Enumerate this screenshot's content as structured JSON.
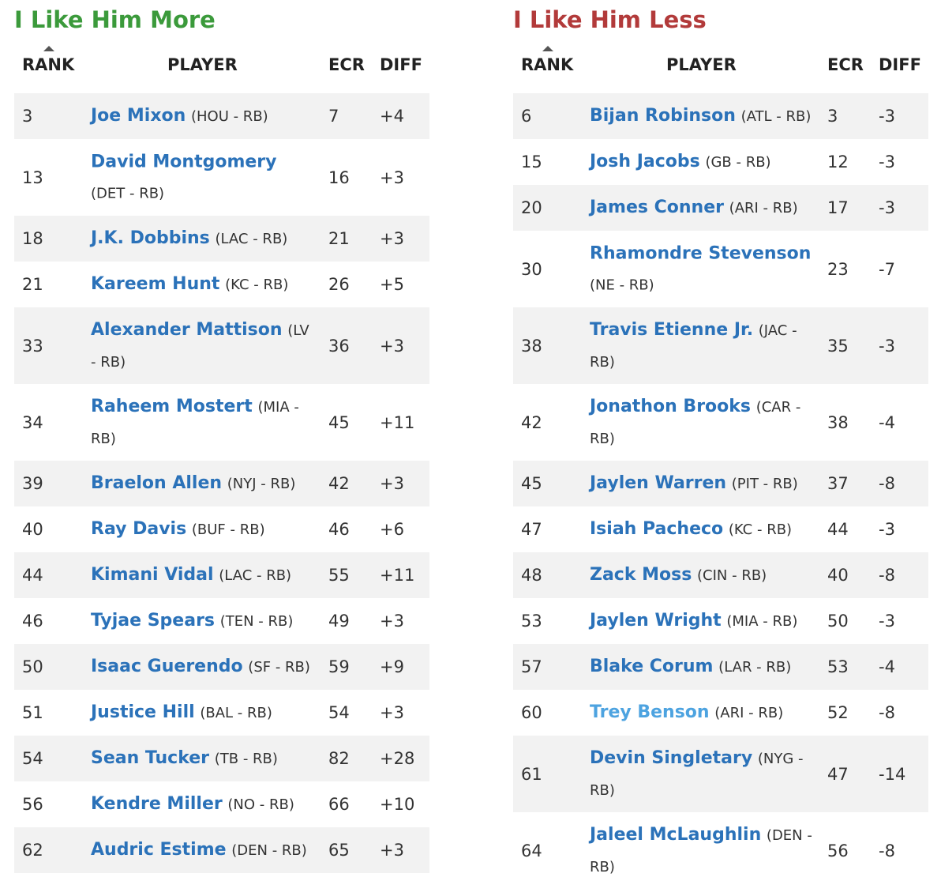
{
  "headers": {
    "rank": "RANK",
    "player": "PLAYER",
    "ecr": "ECR",
    "diff": "DIFF"
  },
  "left": {
    "title": "I Like Him More",
    "rows": [
      {
        "rank": "3",
        "name": "Joe Mixon",
        "team": "(HOU - RB)",
        "ecr": "7",
        "diff": "+4"
      },
      {
        "rank": "13",
        "name": "David Montgomery",
        "team": "(DET - RB)",
        "ecr": "16",
        "diff": "+3"
      },
      {
        "rank": "18",
        "name": "J.K. Dobbins",
        "team": "(LAC - RB)",
        "ecr": "21",
        "diff": "+3"
      },
      {
        "rank": "21",
        "name": "Kareem Hunt",
        "team": "(KC - RB)",
        "ecr": "26",
        "diff": "+5"
      },
      {
        "rank": "33",
        "name": "Alexander Mattison",
        "team": "(LV - RB)",
        "ecr": "36",
        "diff": "+3"
      },
      {
        "rank": "34",
        "name": "Raheem Mostert",
        "team": "(MIA - RB)",
        "ecr": "45",
        "diff": "+11"
      },
      {
        "rank": "39",
        "name": "Braelon Allen",
        "team": "(NYJ - RB)",
        "ecr": "42",
        "diff": "+3"
      },
      {
        "rank": "40",
        "name": "Ray Davis",
        "team": "(BUF - RB)",
        "ecr": "46",
        "diff": "+6"
      },
      {
        "rank": "44",
        "name": "Kimani Vidal",
        "team": "(LAC - RB)",
        "ecr": "55",
        "diff": "+11"
      },
      {
        "rank": "46",
        "name": "Tyjae Spears",
        "team": "(TEN - RB)",
        "ecr": "49",
        "diff": "+3"
      },
      {
        "rank": "50",
        "name": "Isaac Guerendo",
        "team": "(SF - RB)",
        "ecr": "59",
        "diff": "+9"
      },
      {
        "rank": "51",
        "name": "Justice Hill",
        "team": "(BAL - RB)",
        "ecr": "54",
        "diff": "+3"
      },
      {
        "rank": "54",
        "name": "Sean Tucker",
        "team": "(TB - RB)",
        "ecr": "82",
        "diff": "+28"
      },
      {
        "rank": "56",
        "name": "Kendre Miller",
        "team": "(NO - RB)",
        "ecr": "66",
        "diff": "+10"
      },
      {
        "rank": "62",
        "name": "Audric Estime",
        "team": "(DEN - RB)",
        "ecr": "65",
        "diff": "+3"
      }
    ]
  },
  "right": {
    "title": "I Like Him Less",
    "rows": [
      {
        "rank": "6",
        "name": "Bijan Robinson",
        "team": "(ATL - RB)",
        "ecr": "3",
        "diff": "-3"
      },
      {
        "rank": "15",
        "name": "Josh Jacobs",
        "team": "(GB - RB)",
        "ecr": "12",
        "diff": "-3"
      },
      {
        "rank": "20",
        "name": "James Conner",
        "team": "(ARI - RB)",
        "ecr": "17",
        "diff": "-3"
      },
      {
        "rank": "30",
        "name": "Rhamondre Stevenson",
        "team": "(NE - RB)",
        "ecr": "23",
        "diff": "-7"
      },
      {
        "rank": "38",
        "name": "Travis Etienne Jr.",
        "team": "(JAC - RB)",
        "ecr": "35",
        "diff": "-3"
      },
      {
        "rank": "42",
        "name": "Jonathon Brooks",
        "team": "(CAR - RB)",
        "ecr": "38",
        "diff": "-4"
      },
      {
        "rank": "45",
        "name": "Jaylen Warren",
        "team": "(PIT - RB)",
        "ecr": "37",
        "diff": "-8"
      },
      {
        "rank": "47",
        "name": "Isiah Pacheco",
        "team": "(KC - RB)",
        "ecr": "44",
        "diff": "-3"
      },
      {
        "rank": "48",
        "name": "Zack Moss",
        "team": "(CIN - RB)",
        "ecr": "40",
        "diff": "-8"
      },
      {
        "rank": "53",
        "name": "Jaylen Wright",
        "team": "(MIA - RB)",
        "ecr": "50",
        "diff": "-3"
      },
      {
        "rank": "57",
        "name": "Blake Corum",
        "team": "(LAR - RB)",
        "ecr": "53",
        "diff": "-4"
      },
      {
        "rank": "60",
        "name": "Trey Benson",
        "team": "(ARI - RB)",
        "ecr": "52",
        "diff": "-8"
      },
      {
        "rank": "61",
        "name": "Devin Singletary",
        "team": "(NYG - RB)",
        "ecr": "47",
        "diff": "-14"
      },
      {
        "rank": "64",
        "name": "Jaleel McLaughlin",
        "team": "(DEN - RB)",
        "ecr": "56",
        "diff": "-8"
      }
    ]
  }
}
